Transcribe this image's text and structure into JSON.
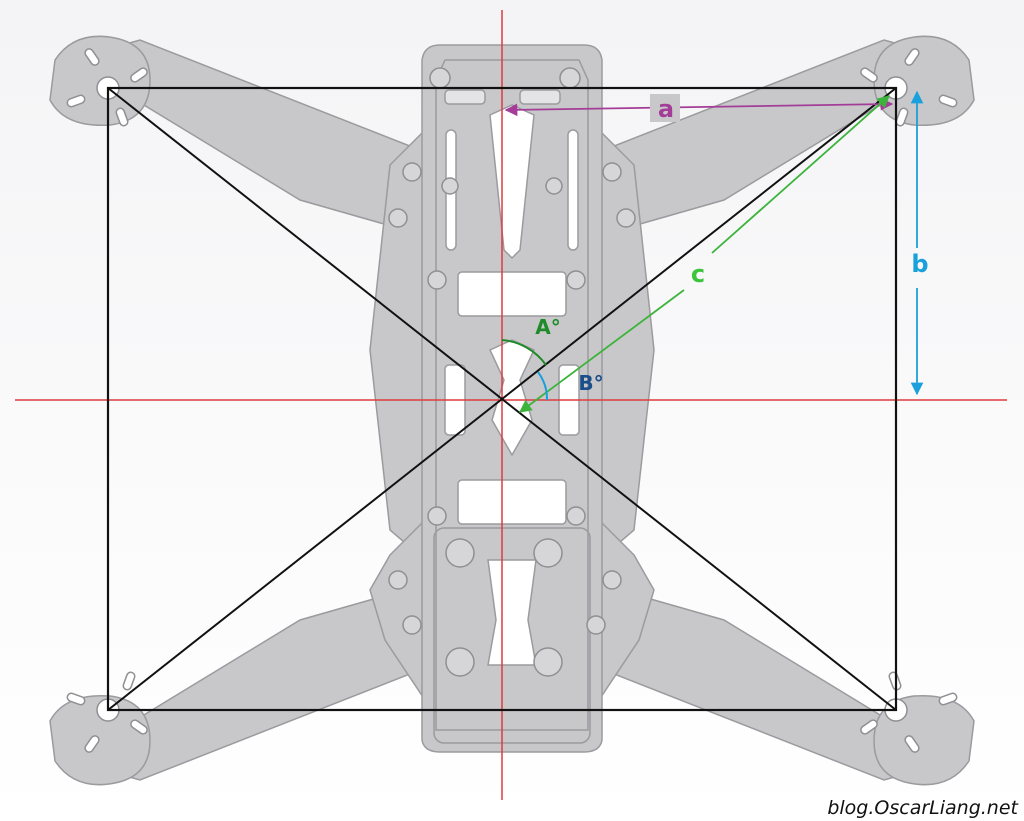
{
  "labels": {
    "a": "a",
    "b": "b",
    "c": "c",
    "angle_a": "A°",
    "angle_b": "B°"
  },
  "watermark": "blog.OscarLiang.net",
  "colors": {
    "frame_fill": "#c8c8cb",
    "frame_stroke": "#9b9b9f",
    "center_axes": "#e03a3e",
    "rectangle": "#111111",
    "label_a": "#a43d98",
    "label_b": "#1aa0dc",
    "label_c": "#3cc43c",
    "angle_a": "#1f8a2a",
    "angle_b": "#1a4f8a"
  }
}
